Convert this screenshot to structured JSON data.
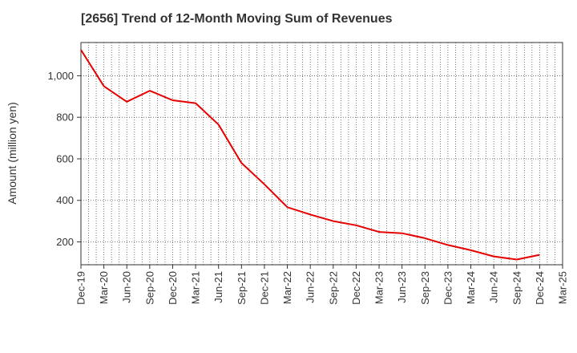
{
  "chart_data": {
    "type": "line",
    "title": "[2656]  Trend of 12-Month Moving Sum of Revenues",
    "xlabel": "",
    "ylabel": "Amount (million yen)",
    "x_ticks": [
      "Dec-19",
      "Mar-20",
      "Jun-20",
      "Sep-20",
      "Dec-20",
      "Mar-21",
      "Jun-21",
      "Sep-21",
      "Dec-21",
      "Mar-22",
      "Jun-22",
      "Sep-22",
      "Dec-22",
      "Mar-23",
      "Jun-23",
      "Sep-23",
      "Dec-23",
      "Mar-24",
      "Jun-24",
      "Sep-24",
      "Dec-24",
      "Mar-25"
    ],
    "y_ticks": [
      200,
      400,
      600,
      800,
      1000
    ],
    "y_tick_labels": [
      "200",
      "400",
      "600",
      "800",
      "1,000"
    ],
    "ylim": [
      90,
      1160
    ],
    "grid": true,
    "series": [
      {
        "color": "#e60000",
        "x": [
          "Dec-19",
          "Mar-20",
          "Jun-20",
          "Sep-20",
          "Dec-20",
          "Mar-21",
          "Jun-21",
          "Sep-21",
          "Dec-21",
          "Mar-22",
          "Jun-22",
          "Sep-22",
          "Dec-22",
          "Mar-23",
          "Jun-23",
          "Sep-23",
          "Dec-23",
          "Mar-24",
          "Jun-24",
          "Sep-24",
          "Dec-24"
        ],
        "values": [
          1125,
          950,
          875,
          928,
          882,
          868,
          765,
          580,
          477,
          367,
          332,
          300,
          280,
          248,
          242,
          218,
          185,
          160,
          130,
          115,
          138
        ]
      }
    ]
  }
}
